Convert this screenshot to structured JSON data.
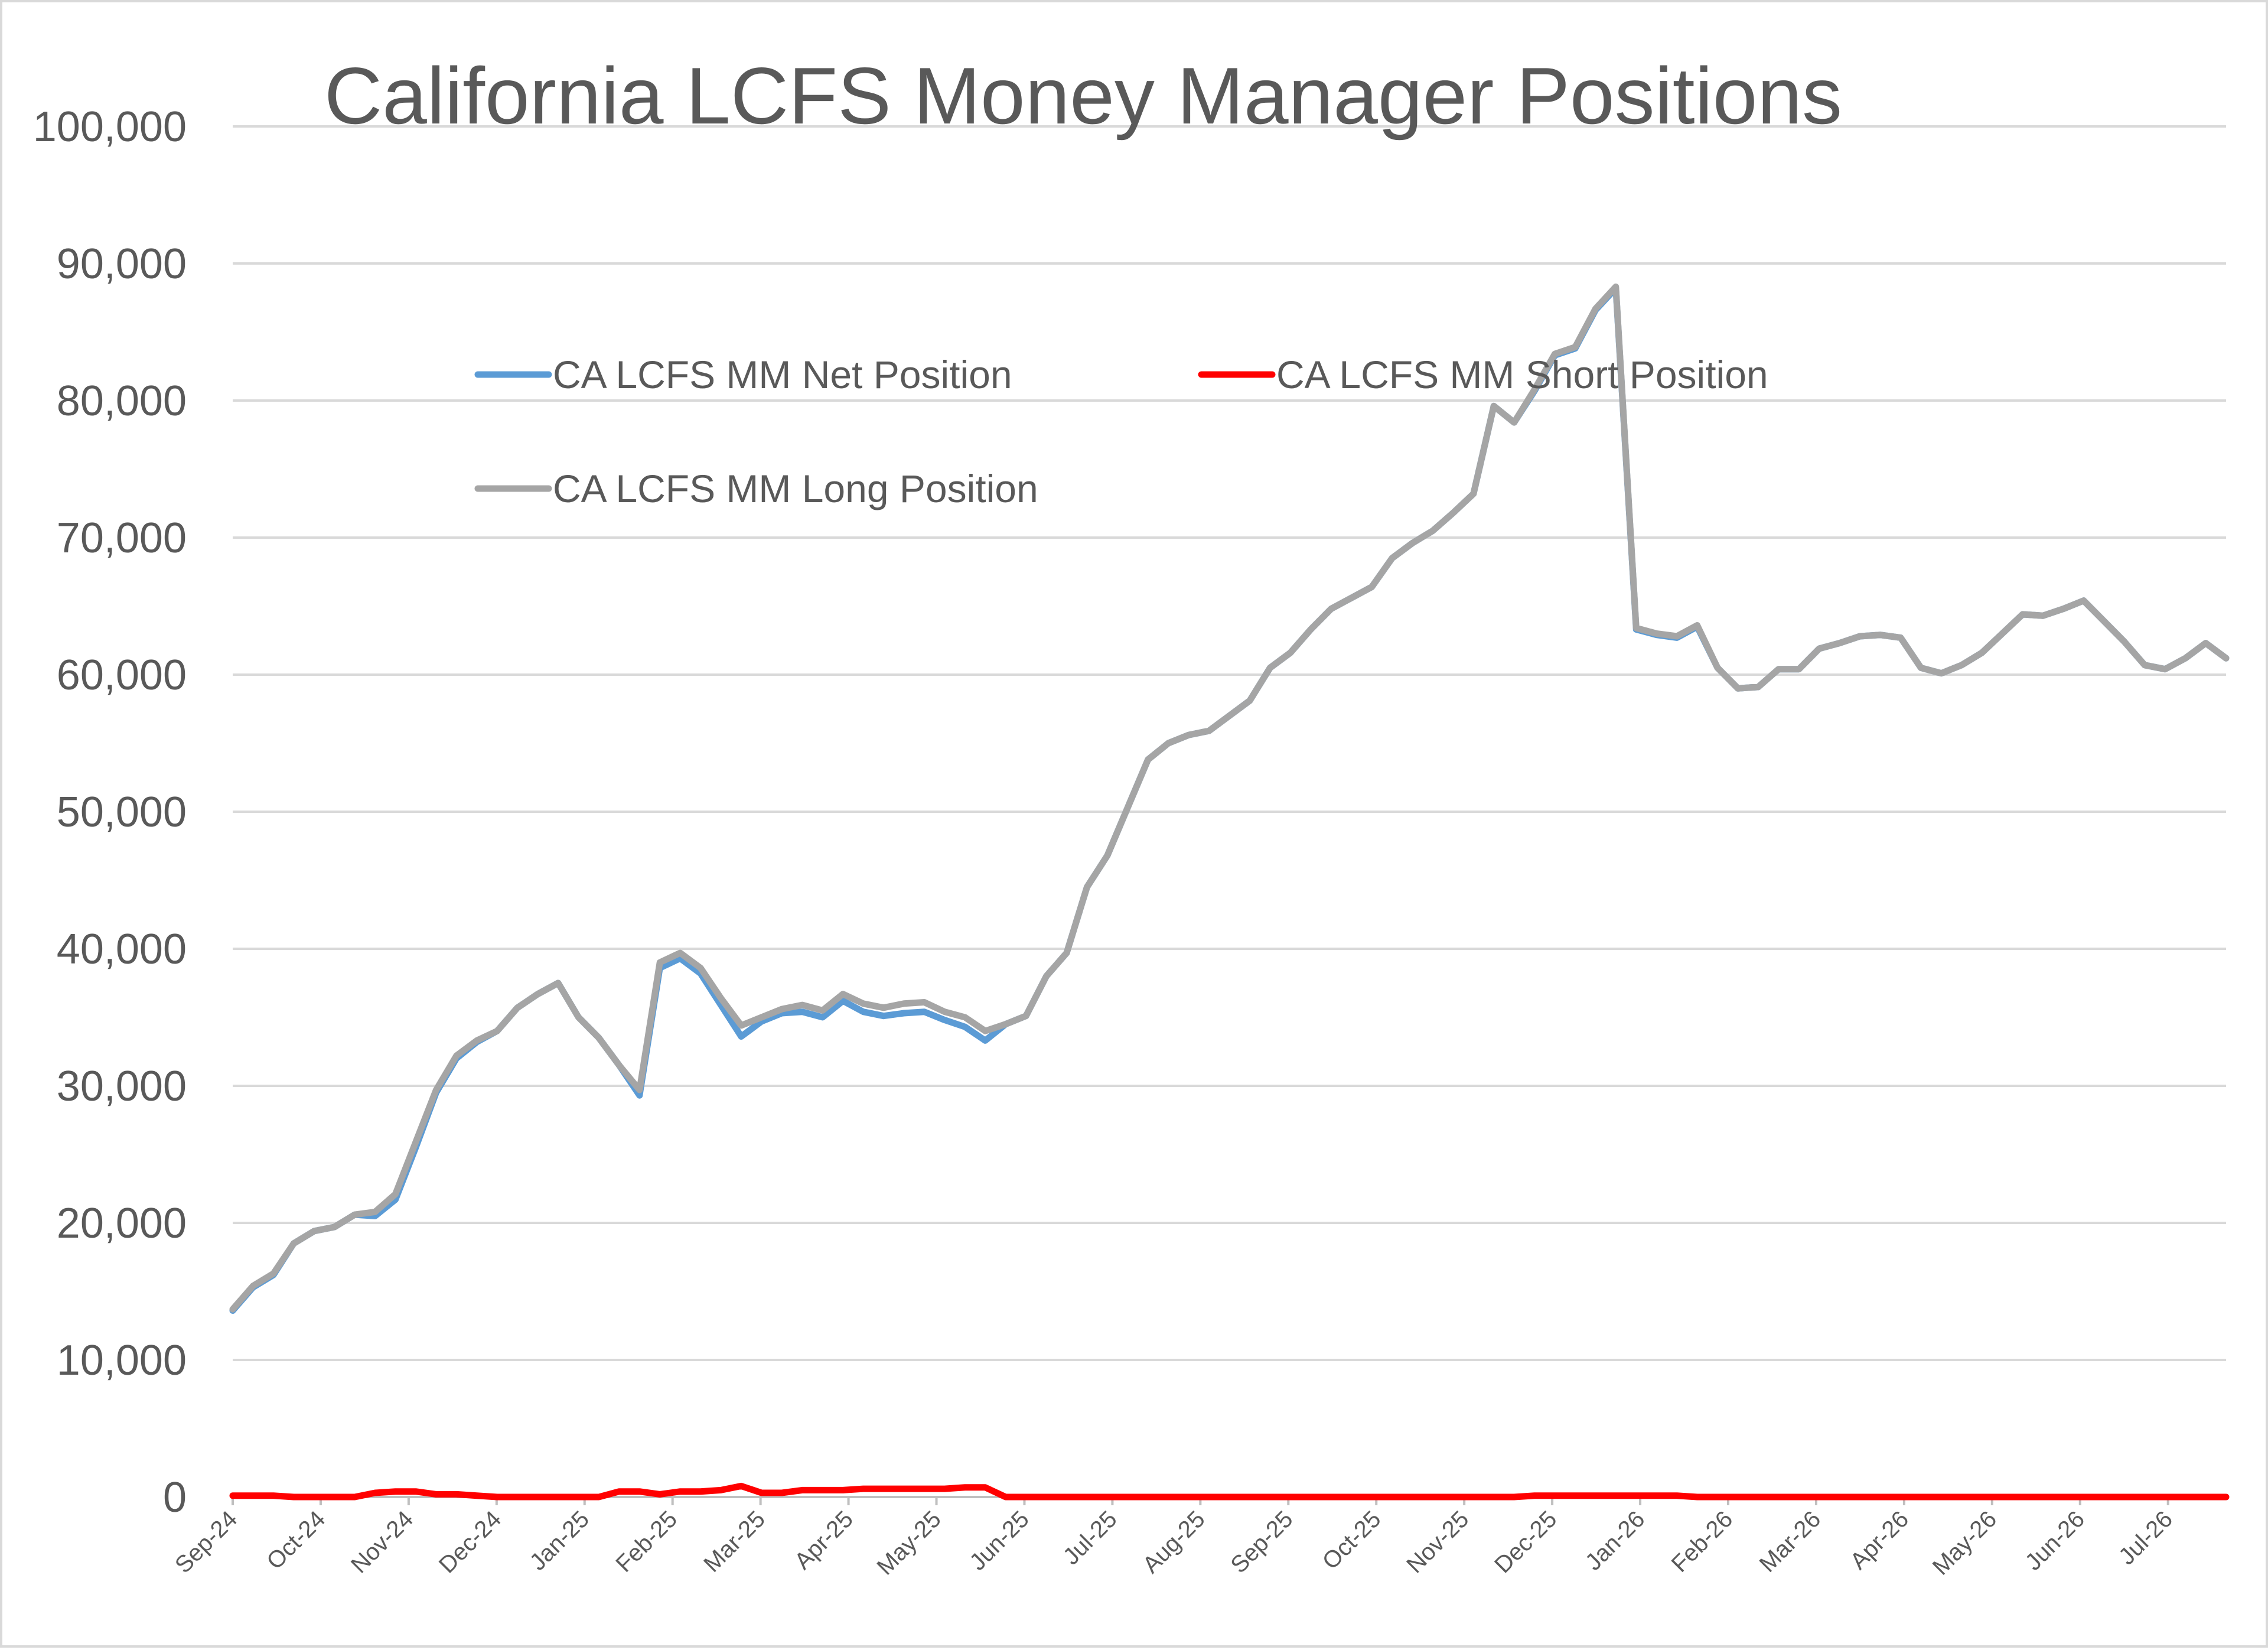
{
  "chart_data": {
    "type": "line",
    "title": "California LCFS Money Manager Positions",
    "xlabel": "",
    "ylabel": "",
    "ylim": [
      0,
      100000
    ],
    "y_ticks": [
      "0",
      "10,000",
      "20,000",
      "30,000",
      "40,000",
      "50,000",
      "60,000",
      "70,000",
      "80,000",
      "90,000",
      "100,000"
    ],
    "grid": true,
    "legend": "top-left inside plot",
    "x_tick_labels": [
      "Sep-24",
      "Oct-24",
      "Nov-24",
      "Dec-24",
      "Jan-25",
      "Feb-25",
      "Mar-25",
      "Apr-25",
      "May-25",
      "Jun-25",
      "Jul-25",
      "Aug-25",
      "Sep-25",
      "Oct-25",
      "Nov-25",
      "Dec-25",
      "Jan-26",
      "Feb-26",
      "Mar-26",
      "Apr-26",
      "May-26",
      "Jun-26",
      "Jul-26"
    ],
    "series": [
      {
        "name": "CA LCFS MM Net Position",
        "color": "#5b9bd5",
        "values": [
          13600,
          15300,
          16200,
          18500,
          19400,
          19700,
          20600,
          20500,
          21700,
          25500,
          29500,
          32000,
          33200,
          34000,
          35700,
          36700,
          37500,
          35000,
          33500,
          31500,
          29300,
          38600,
          39300,
          38200,
          35900,
          33600,
          34700,
          35300,
          35400,
          35000,
          36200,
          35400,
          35100,
          35300,
          35400,
          34800,
          34300,
          33300,
          34500,
          35100,
          38000,
          39700,
          44500,
          46800,
          50300,
          53800,
          55000,
          55600,
          55900,
          57000,
          58100,
          60500,
          61600,
          63300,
          64800,
          65600,
          66400,
          68500,
          69600,
          70500,
          71800,
          73200,
          79600,
          78400,
          80700,
          83300,
          83800,
          86600,
          88200,
          63300,
          62900,
          62700,
          63500,
          60500,
          59000,
          59100,
          60400,
          60400,
          61900,
          62300,
          62800,
          62900,
          62700,
          60500,
          60100,
          60700,
          61600,
          63000,
          64400,
          64300,
          64800,
          65400,
          63900,
          62400,
          60700,
          60400,
          61200,
          62300,
          61200
        ]
      },
      {
        "name": "CA LCFS MM Short Position",
        "color": "#ff0000",
        "values": [
          100,
          100,
          100,
          0,
          0,
          0,
          0,
          300,
          400,
          400,
          200,
          200,
          100,
          0,
          0,
          0,
          0,
          0,
          0,
          400,
          400,
          200,
          400,
          400,
          500,
          800,
          300,
          300,
          500,
          500,
          500,
          600,
          600,
          600,
          600,
          600,
          700,
          700,
          0,
          0,
          0,
          0,
          0,
          0,
          0,
          0,
          0,
          0,
          0,
          0,
          0,
          0,
          0,
          0,
          0,
          0,
          0,
          0,
          0,
          0,
          0,
          0,
          0,
          0,
          100,
          100,
          100,
          100,
          100,
          100,
          100,
          100,
          0,
          0,
          0,
          0,
          0,
          0,
          0,
          0,
          0,
          0,
          0,
          0,
          0,
          0,
          0,
          0,
          0,
          0,
          0,
          0,
          0,
          0,
          0,
          0,
          0,
          0,
          0
        ]
      },
      {
        "name": "CA LCFS MM Long Position",
        "color": "#a5a5a5",
        "values": [
          13700,
          15400,
          16300,
          18500,
          19400,
          19700,
          20600,
          20800,
          22100,
          25900,
          29700,
          32200,
          33300,
          34000,
          35700,
          36700,
          37500,
          35000,
          33500,
          31500,
          29700,
          39000,
          39700,
          38600,
          36400,
          34400,
          35000,
          35600,
          35900,
          35500,
          36700,
          36000,
          35700,
          36000,
          36100,
          35400,
          35000,
          34000,
          34500,
          35100,
          38000,
          39700,
          44500,
          46800,
          50300,
          53800,
          55000,
          55600,
          55900,
          57000,
          58100,
          60500,
          61600,
          63300,
          64800,
          65600,
          66400,
          68500,
          69600,
          70500,
          71800,
          73200,
          79600,
          78400,
          80800,
          83400,
          83900,
          86700,
          88300,
          63400,
          63000,
          62800,
          63600,
          60500,
          59000,
          59100,
          60400,
          60400,
          61900,
          62300,
          62800,
          62900,
          62700,
          60500,
          60100,
          60700,
          61600,
          63000,
          64400,
          64300,
          64800,
          65400,
          63900,
          62400,
          60700,
          60400,
          61200,
          62300,
          61200
        ]
      }
    ]
  }
}
